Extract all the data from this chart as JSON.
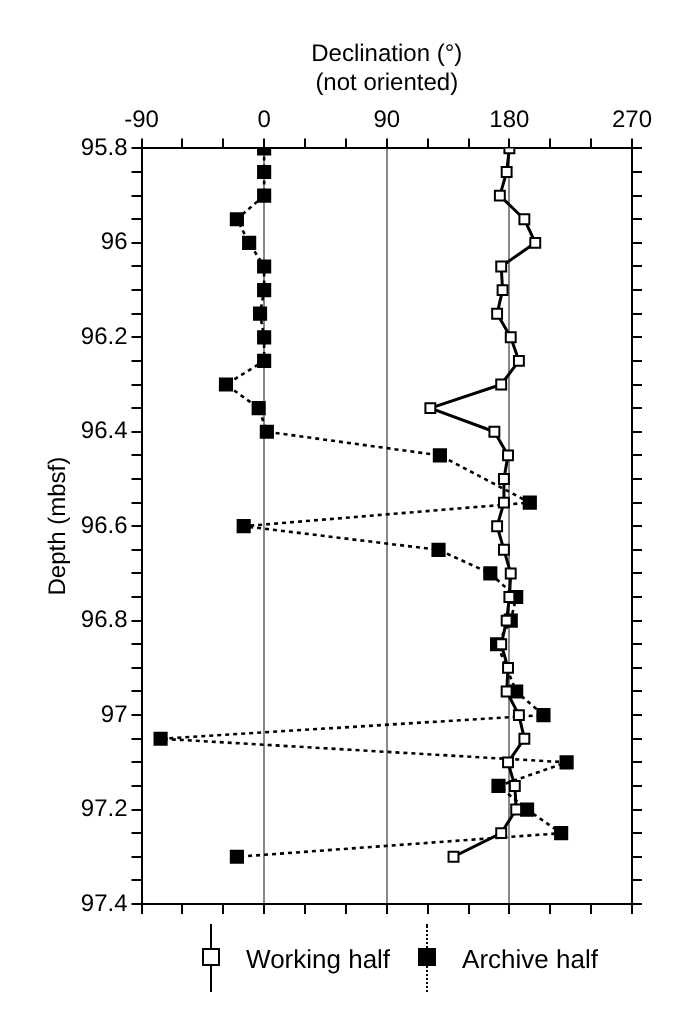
{
  "chart_data": {
    "type": "line",
    "xlabel": "Declination (°)\n(not oriented)",
    "ylabel": "Depth (mbsf)",
    "xlim": [
      -90,
      270
    ],
    "xticks": [
      -90,
      {
        "value": -60,
        "label": null
      },
      {
        "value": -30,
        "label": null
      },
      0,
      {
        "value": 30,
        "label": null
      },
      {
        "value": 60,
        "label": null
      },
      90,
      {
        "value": 120,
        "label": null
      },
      {
        "value": 150,
        "label": null
      },
      180,
      {
        "value": 210,
        "label": null
      },
      {
        "value": 240,
        "label": null
      },
      270
    ],
    "ylim": [
      97.4,
      95.8
    ],
    "yticks": [
      95.8,
      {
        "value": 95.85,
        "label": null
      },
      {
        "value": 95.9,
        "label": null
      },
      {
        "value": 95.95,
        "label": null
      },
      96,
      {
        "value": 96.05,
        "label": null
      },
      {
        "value": 96.1,
        "label": null
      },
      {
        "value": 96.15,
        "label": null
      },
      96.2,
      {
        "value": 96.25,
        "label": null
      },
      {
        "value": 96.3,
        "label": null
      },
      {
        "value": 96.35,
        "label": null
      },
      96.4,
      {
        "value": 96.45,
        "label": null
      },
      {
        "value": 96.5,
        "label": null
      },
      {
        "value": 96.55,
        "label": null
      },
      96.6,
      {
        "value": 96.65,
        "label": null
      },
      {
        "value": 96.7,
        "label": null
      },
      {
        "value": 96.75,
        "label": null
      },
      96.8,
      {
        "value": 96.85,
        "label": null
      },
      {
        "value": 96.9,
        "label": null
      },
      {
        "value": 96.95,
        "label": null
      },
      97,
      {
        "value": 97.05,
        "label": null
      },
      {
        "value": 97.1,
        "label": null
      },
      {
        "value": 97.15,
        "label": null
      },
      97.2,
      {
        "value": 97.25,
        "label": null
      },
      {
        "value": 97.3,
        "label": null
      },
      {
        "value": 97.35,
        "label": null
      },
      97.4
    ],
    "grid": "x",
    "legend": "bottom",
    "series": [
      {
        "name": "Working half",
        "color": "#000000",
        "marker": "square",
        "line_style": "solid",
        "x": [
          180,
          178,
          173,
          191,
          199,
          174,
          175,
          171,
          181,
          187,
          174,
          122,
          169,
          179,
          176,
          176,
          171,
          176,
          181,
          180,
          178,
          174,
          179,
          178,
          187,
          191,
          179,
          184,
          185,
          174,
          139
        ],
        "values": [
          95.8,
          95.85,
          95.9,
          95.95,
          96,
          96.05,
          96.1,
          96.15,
          96.2,
          96.25,
          96.3,
          96.35,
          96.4,
          96.45,
          96.5,
          96.55,
          96.6,
          96.65,
          96.7,
          96.75,
          96.8,
          96.85,
          96.9,
          96.95,
          97,
          97.05,
          97.1,
          97.15,
          97.2,
          97.25,
          97.3
        ]
      },
      {
        "name": "Archive half",
        "color": "#000000",
        "marker": "square",
        "line_style": "dotted",
        "x": [
          0,
          0,
          0,
          -20,
          -11,
          0,
          0,
          -3,
          0,
          0,
          -28,
          -4,
          2,
          129,
          195,
          -15,
          128,
          166,
          185,
          181,
          171,
          185,
          205,
          -76,
          222,
          172,
          193,
          218,
          -20
        ],
        "values": [
          95.8,
          95.85,
          95.9,
          95.95,
          96,
          96.05,
          96.1,
          96.15,
          96.2,
          96.25,
          96.3,
          96.35,
          96.4,
          96.45,
          96.55,
          96.6,
          96.65,
          96.7,
          96.75,
          96.8,
          96.85,
          96.95,
          97,
          97.05,
          97.1,
          97.15,
          97.2,
          97.25,
          97.3
        ]
      }
    ]
  }
}
